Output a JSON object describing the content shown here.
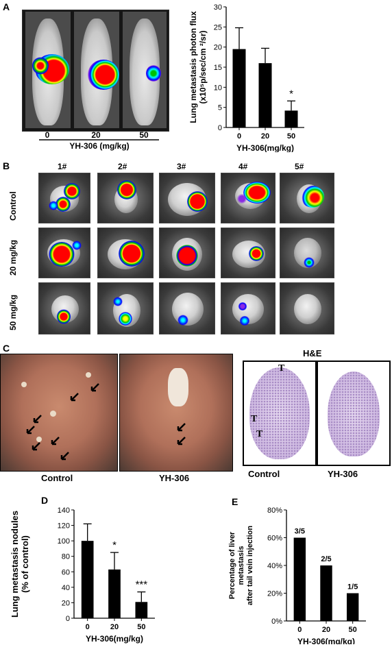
{
  "panels": {
    "A": {
      "label": "A",
      "dose_labels": [
        "0",
        "20",
        "50"
      ],
      "xlabel": "YH-306 (mg/kg)"
    },
    "B": {
      "label": "B",
      "columns": [
        "1#",
        "2#",
        "3#",
        "4#",
        "5#"
      ],
      "rows": [
        "Control",
        "20 mg/kg",
        "50 mg/kg"
      ]
    },
    "C": {
      "label": "C",
      "gross_labels": [
        "Control",
        "YH-306"
      ],
      "he_title": "H&E",
      "he_labels": [
        "Control",
        "YH-306"
      ],
      "tumor_marker": "T"
    },
    "D": {
      "label": "D"
    },
    "E": {
      "label": "E"
    }
  },
  "colors": {
    "bar": "#000000",
    "heat_high": "#ff0000",
    "heat_mid": "#ffff00",
    "heat_low": "#00c000",
    "heat_edge": "#0000ff",
    "heat_outer": "#8a2be2"
  },
  "chart_data": [
    {
      "id": "A",
      "type": "bar",
      "categories": [
        "0",
        "20",
        "50"
      ],
      "values": [
        19.5,
        16.0,
        4.2
      ],
      "errors": [
        5.3,
        3.7,
        2.4
      ],
      "annotations": [
        "",
        "",
        "*"
      ],
      "ylabel": "Lung metastasis photon flux (x10⁵p/sec/cm ²/sr)",
      "xlabel": "YH-306(mg/kg)",
      "ylim": [
        0,
        30
      ],
      "yticks": [
        "0",
        "5",
        "10",
        "15",
        "20",
        "25",
        "30"
      ]
    },
    {
      "id": "D",
      "type": "bar",
      "categories": [
        "0",
        "20",
        "50"
      ],
      "values": [
        100,
        63,
        21
      ],
      "errors": [
        22,
        22,
        13
      ],
      "annotations": [
        "",
        "*",
        "***"
      ],
      "ylabel": "Lung metastasis nodules (% of control)",
      "xlabel": "YH-306(mg/kg)",
      "ylim": [
        0,
        140
      ],
      "yticks": [
        "0",
        "20",
        "40",
        "60",
        "80",
        "100",
        "120",
        "140"
      ]
    },
    {
      "id": "E",
      "type": "bar",
      "categories": [
        "0",
        "20",
        "50"
      ],
      "values": [
        60,
        40,
        20
      ],
      "annotations": [
        "3/5",
        "2/5",
        "1/5"
      ],
      "ylabel": "Percentage of liver metastasis after tail vein injection",
      "xlabel": "YH-306(mg/kg)",
      "ylim": [
        0,
        80
      ],
      "yticks": [
        "0%",
        "20%",
        "40%",
        "60%",
        "80%"
      ]
    }
  ]
}
